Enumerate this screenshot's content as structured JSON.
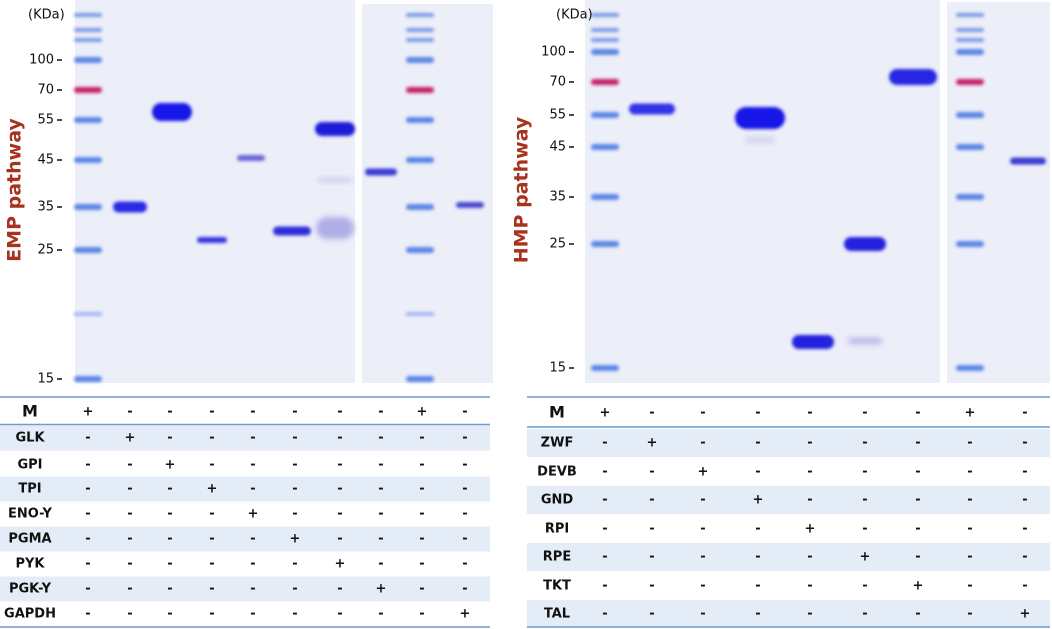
{
  "panels": [
    {
      "kda_label": "(KDa)",
      "side_label": "EMP pathway",
      "markers": [
        100,
        70,
        55,
        45,
        35,
        25,
        15
      ],
      "table": {
        "rows": [
          {
            "label": "M",
            "cells": [
              "+",
              "-",
              "-",
              "-",
              "-",
              "-",
              "-",
              "-",
              "+",
              "-"
            ]
          },
          {
            "label": "GLK",
            "cells": [
              "-",
              "+",
              "-",
              "-",
              "-",
              "-",
              "-",
              "-",
              "-",
              "-"
            ]
          },
          {
            "label": "GPI",
            "cells": [
              "-",
              "-",
              "+",
              "-",
              "-",
              "-",
              "-",
              "-",
              "-",
              "-"
            ]
          },
          {
            "label": "TPI",
            "cells": [
              "-",
              "-",
              "-",
              "+",
              "-",
              "-",
              "-",
              "-",
              "-",
              "-"
            ]
          },
          {
            "label": "ENO-Y",
            "cells": [
              "-",
              "-",
              "-",
              "-",
              "+",
              "-",
              "-",
              "-",
              "-",
              "-"
            ]
          },
          {
            "label": "PGMA",
            "cells": [
              "-",
              "-",
              "-",
              "-",
              "-",
              "+",
              "-",
              "-",
              "-",
              "-"
            ]
          },
          {
            "label": "PYK",
            "cells": [
              "-",
              "-",
              "-",
              "-",
              "-",
              "-",
              "+",
              "-",
              "-",
              "-"
            ]
          },
          {
            "label": "PGK-Y",
            "cells": [
              "-",
              "-",
              "-",
              "-",
              "-",
              "-",
              "-",
              "+",
              "-",
              "-"
            ]
          },
          {
            "label": "GAPDH",
            "cells": [
              "-",
              "-",
              "-",
              "-",
              "-",
              "-",
              "-",
              "-",
              "-",
              "+"
            ]
          }
        ]
      }
    },
    {
      "kda_label": "(KDa)",
      "side_label": "HMP pathway",
      "markers": [
        100,
        70,
        55,
        45,
        35,
        25,
        15
      ],
      "table": {
        "rows": [
          {
            "label": "M",
            "cells": [
              "+",
              "-",
              "-",
              "-",
              "-",
              "-",
              "-",
              "+",
              "-"
            ]
          },
          {
            "label": "ZWF",
            "cells": [
              "-",
              "+",
              "-",
              "-",
              "-",
              "-",
              "-",
              "-",
              "-"
            ]
          },
          {
            "label": "DEVB",
            "cells": [
              "-",
              "-",
              "+",
              "-",
              "-",
              "-",
              "-",
              "-",
              "-"
            ]
          },
          {
            "label": "GND",
            "cells": [
              "-",
              "-",
              "-",
              "+",
              "-",
              "-",
              "-",
              "-",
              "-"
            ]
          },
          {
            "label": "RPI",
            "cells": [
              "-",
              "-",
              "-",
              "-",
              "+",
              "-",
              "-",
              "-",
              "-"
            ]
          },
          {
            "label": "RPE",
            "cells": [
              "-",
              "-",
              "-",
              "-",
              "-",
              "+",
              "-",
              "-",
              "-"
            ]
          },
          {
            "label": "TKT",
            "cells": [
              "-",
              "-",
              "-",
              "-",
              "-",
              "-",
              "+",
              "-",
              "-"
            ]
          },
          {
            "label": "TAL",
            "cells": [
              "-",
              "-",
              "-",
              "-",
              "-",
              "-",
              "-",
              "-",
              "+"
            ]
          }
        ]
      }
    }
  ]
}
